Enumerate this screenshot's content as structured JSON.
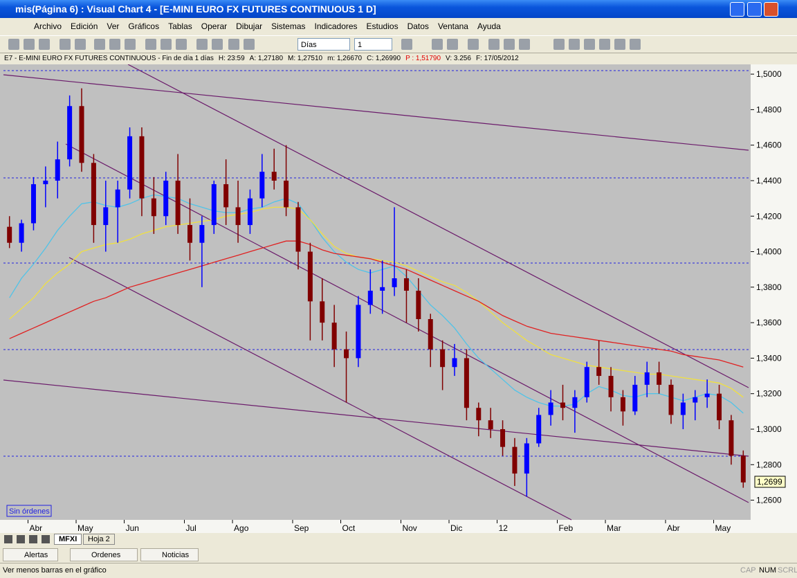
{
  "window": {
    "title": "mis(Página 6) : Visual Chart 4 - [E-MINI EURO FX FUTURES CONTINUOUS 1 D]"
  },
  "menu": [
    "Archivo",
    "Edición",
    "Ver",
    "Gráficos",
    "Tablas",
    "Operar",
    "Dibujar",
    "Sistemas",
    "Indicadores",
    "Estudios",
    "Datos",
    "Ventana",
    "Ayuda"
  ],
  "toolbar": {
    "period": "Días",
    "interval": "1"
  },
  "chart_header": {
    "symbol": "E7 - E-MINI EURO FX FUTURES CONTINUOUS - Fin de día 1 días",
    "fields": [
      "H: 23:59",
      "A: 1,27180",
      "M: 1,27510",
      "m: 1,26670",
      "C: 1,26990",
      "P : 1,51790",
      "V: 3.256",
      "F: 17/05/2012"
    ]
  },
  "orders_label": "Sin órdenes",
  "price_marker": "1,2699",
  "sheet_tabs": [
    "MFXI",
    "Hoja 2"
  ],
  "panel_tabs": [
    "Alertas",
    "Ordenes",
    "Noticias"
  ],
  "status": {
    "message": "Ver menos barras en el gráfico",
    "indicators": [
      "CAP",
      "NUM",
      "SCRL"
    ]
  },
  "chart_data": {
    "type": "candlestick",
    "categories": [
      null,
      null,
      "Abr",
      null,
      null,
      null,
      "May",
      null,
      null,
      null,
      "Jun",
      null,
      null,
      null,
      null,
      "Jul",
      null,
      null,
      null,
      "Ago",
      null,
      null,
      null,
      null,
      "Sep",
      null,
      null,
      null,
      "Oct",
      null,
      null,
      null,
      null,
      "Nov",
      null,
      null,
      null,
      "Dic",
      null,
      null,
      null,
      "12",
      null,
      null,
      null,
      null,
      "Feb",
      null,
      null,
      null,
      "Mar",
      null,
      null,
      null,
      null,
      "Abr",
      null,
      null,
      null,
      "May",
      null,
      null
    ],
    "open": [
      1.414,
      1.405,
      1.416,
      1.438,
      1.44,
      1.452,
      1.482,
      1.45,
      1.415,
      1.425,
      1.435,
      1.465,
      1.43,
      1.42,
      1.44,
      1.415,
      1.405,
      1.415,
      1.438,
      1.425,
      1.415,
      1.43,
      1.445,
      1.44,
      1.425,
      1.4,
      1.372,
      1.36,
      1.345,
      1.34,
      1.37,
      1.378,
      1.38,
      1.385,
      1.378,
      1.362,
      1.345,
      1.335,
      1.34,
      1.312,
      1.305,
      1.3,
      1.29,
      1.275,
      1.292,
      1.308,
      1.315,
      1.312,
      1.318,
      1.335,
      1.33,
      1.318,
      1.31,
      1.325,
      1.332,
      1.325,
      1.308,
      1.315,
      1.318,
      1.32,
      1.305,
      1.285
    ],
    "high": [
      1.42,
      1.418,
      1.442,
      1.448,
      1.462,
      1.488,
      1.492,
      1.455,
      1.44,
      1.44,
      1.47,
      1.47,
      1.442,
      1.445,
      1.455,
      1.43,
      1.42,
      1.44,
      1.452,
      1.44,
      1.435,
      1.455,
      1.458,
      1.46,
      1.428,
      1.405,
      1.385,
      1.37,
      1.355,
      1.375,
      1.39,
      1.395,
      1.425,
      1.39,
      1.385,
      1.365,
      1.35,
      1.348,
      1.345,
      1.315,
      1.312,
      1.305,
      1.295,
      1.295,
      1.312,
      1.322,
      1.325,
      1.322,
      1.338,
      1.35,
      1.335,
      1.322,
      1.33,
      1.338,
      1.338,
      1.328,
      1.32,
      1.322,
      1.328,
      1.325,
      1.308,
      1.288
    ],
    "low": [
      1.402,
      1.4,
      1.412,
      1.425,
      1.43,
      1.448,
      1.445,
      1.405,
      1.4,
      1.405,
      1.43,
      1.42,
      1.41,
      1.415,
      1.41,
      1.395,
      1.38,
      1.41,
      1.415,
      1.405,
      1.41,
      1.425,
      1.435,
      1.42,
      1.39,
      1.35,
      1.35,
      1.335,
      1.315,
      1.335,
      1.365,
      1.365,
      1.375,
      1.36,
      1.355,
      1.335,
      1.322,
      1.33,
      1.305,
      1.296,
      1.295,
      1.285,
      1.268,
      1.262,
      1.29,
      1.302,
      1.305,
      1.298,
      1.315,
      1.325,
      1.31,
      1.302,
      1.308,
      1.318,
      1.32,
      1.303,
      1.3,
      1.305,
      1.312,
      1.3,
      1.28,
      1.267
    ],
    "close": [
      1.405,
      1.416,
      1.438,
      1.44,
      1.452,
      1.482,
      1.45,
      1.415,
      1.425,
      1.435,
      1.465,
      1.43,
      1.42,
      1.44,
      1.415,
      1.405,
      1.415,
      1.438,
      1.425,
      1.415,
      1.43,
      1.445,
      1.44,
      1.425,
      1.4,
      1.372,
      1.36,
      1.345,
      1.34,
      1.37,
      1.378,
      1.38,
      1.385,
      1.378,
      1.362,
      1.345,
      1.335,
      1.34,
      1.312,
      1.305,
      1.3,
      1.29,
      1.275,
      1.292,
      1.308,
      1.315,
      1.312,
      1.318,
      1.335,
      1.33,
      1.318,
      1.31,
      1.325,
      1.332,
      1.325,
      1.308,
      1.315,
      1.318,
      1.32,
      1.305,
      1.285,
      1.27
    ],
    "up_color": "#0000ff",
    "down_color": "#800000",
    "lines": [
      {
        "color": "#4fc3e8",
        "values": [
          1.374,
          1.385,
          1.393,
          1.402,
          1.412,
          1.42,
          1.427,
          1.428,
          1.426,
          1.425,
          1.427,
          1.43,
          1.432,
          1.431,
          1.43,
          1.427,
          1.425,
          1.423,
          1.422,
          1.422,
          1.424,
          1.425,
          1.428,
          1.43,
          1.427,
          1.418,
          1.408,
          1.4,
          1.394,
          1.39,
          1.388,
          1.39,
          1.392,
          1.386,
          1.378,
          1.37,
          1.364,
          1.357,
          1.348,
          1.34,
          1.334,
          1.328,
          1.322,
          1.318,
          1.315,
          1.313,
          1.313,
          1.314,
          1.32,
          1.324,
          1.322,
          1.319,
          1.318,
          1.32,
          1.32,
          1.318,
          1.316,
          1.318,
          1.32,
          1.319,
          1.315,
          1.309
        ]
      },
      {
        "color": "#f0e040",
        "values": [
          1.362,
          1.368,
          1.374,
          1.382,
          1.388,
          1.393,
          1.4,
          1.402,
          1.404,
          1.405,
          1.407,
          1.41,
          1.412,
          1.414,
          1.415,
          1.416,
          1.417,
          1.418,
          1.42,
          1.421,
          1.422,
          1.424,
          1.425,
          1.425,
          1.424,
          1.418,
          1.41,
          1.403,
          1.399,
          1.397,
          1.396,
          1.395,
          1.394,
          1.392,
          1.389,
          1.386,
          1.383,
          1.381,
          1.377,
          1.372,
          1.366,
          1.36,
          1.355,
          1.35,
          1.346,
          1.342,
          1.34,
          1.338,
          1.336,
          1.335,
          1.334,
          1.333,
          1.332,
          1.331,
          1.331,
          1.33,
          1.329,
          1.328,
          1.327,
          1.326,
          1.323,
          1.318
        ]
      },
      {
        "color": "#e02020",
        "values": [
          1.351,
          1.354,
          1.357,
          1.36,
          1.363,
          1.366,
          1.369,
          1.372,
          1.374,
          1.377,
          1.38,
          1.382,
          1.384,
          1.386,
          1.388,
          1.39,
          1.392,
          1.394,
          1.396,
          1.398,
          1.4,
          1.402,
          1.404,
          1.406,
          1.406,
          1.404,
          1.401,
          1.399,
          1.398,
          1.397,
          1.396,
          1.394,
          1.392,
          1.39,
          1.387,
          1.384,
          1.381,
          1.378,
          1.375,
          1.372,
          1.368,
          1.364,
          1.361,
          1.358,
          1.356,
          1.354,
          1.353,
          1.352,
          1.351,
          1.35,
          1.349,
          1.348,
          1.347,
          1.346,
          1.345,
          1.344,
          1.342,
          1.341,
          1.34,
          1.339,
          1.337,
          1.335
        ]
      }
    ],
    "ylim": [
      1.2493,
      1.5055
    ],
    "yticks": [
      {
        "value": 1.5,
        "label": "1,5000"
      },
      {
        "value": 1.48,
        "label": "1,4800"
      },
      {
        "value": 1.46,
        "label": "1,4600"
      },
      {
        "value": 1.44,
        "label": "1,4400"
      },
      {
        "value": 1.42,
        "label": "1,4200"
      },
      {
        "value": 1.4,
        "label": "1,4000"
      },
      {
        "value": 1.38,
        "label": "1,3800"
      },
      {
        "value": 1.36,
        "label": "1,3600"
      },
      {
        "value": 1.34,
        "label": "1,3400"
      },
      {
        "value": 1.32,
        "label": "1,3200"
      },
      {
        "value": 1.3,
        "label": "1,3000"
      },
      {
        "value": 1.28,
        "label": "1,2800"
      },
      {
        "value": 1.26,
        "label": "1,2600"
      }
    ]
  }
}
